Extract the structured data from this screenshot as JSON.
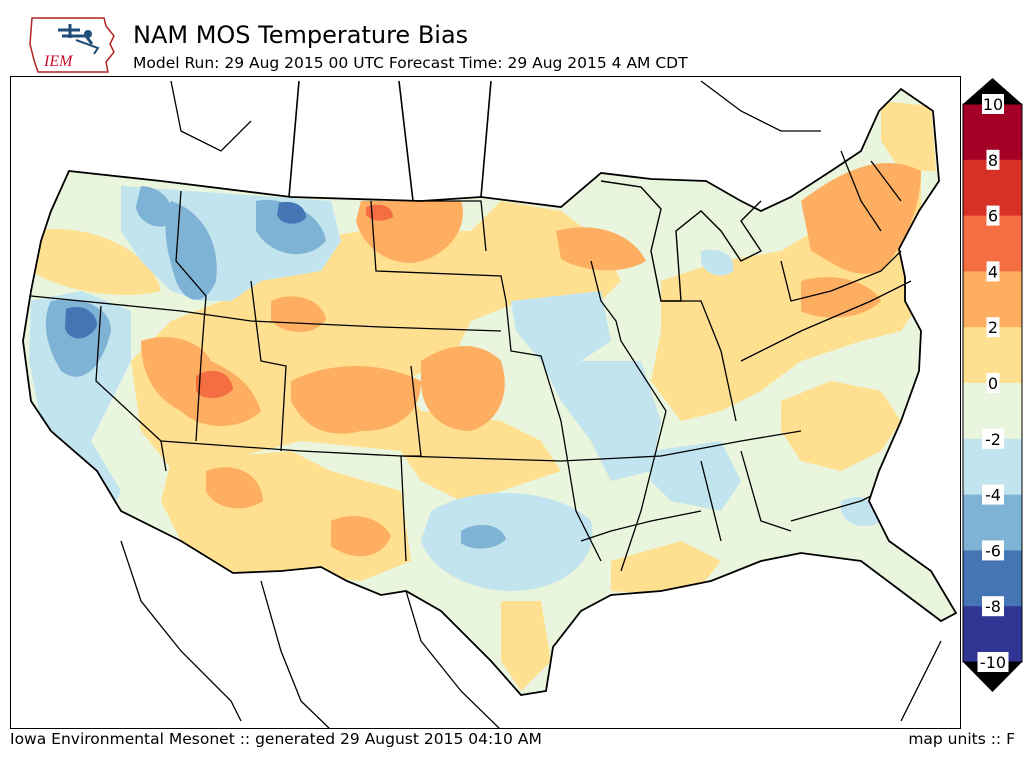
{
  "header": {
    "title": "NAM MOS Temperature Bias",
    "subtitle": "Model Run: 29 Aug 2015 00 UTC Forecast Time: 29 Aug 2015 4 AM CDT",
    "logo_text": "IEM"
  },
  "footer": {
    "credit": "Iowa Environmental Mesonet :: generated 29 August 2015 04:10 AM",
    "units": "map units :: F"
  },
  "colorbar": {
    "ticks": [
      "10",
      "8",
      "6",
      "4",
      "2",
      "0",
      "-2",
      "-4",
      "-6",
      "-8",
      "-10"
    ],
    "bins": [
      {
        "range": "8 to 10",
        "color": "#a50026"
      },
      {
        "range": "6 to 8",
        "color": "#d73027"
      },
      {
        "range": "4 to 6",
        "color": "#f46d43"
      },
      {
        "range": "2 to 4",
        "color": "#fdae61"
      },
      {
        "range": "0 to 2",
        "color": "#fee090"
      },
      {
        "range": "-2 to 0",
        "color": "#e9f5dc"
      },
      {
        "range": "-4 to -2",
        "color": "#c2e4ef"
      },
      {
        "range": "-6 to -4",
        "color": "#7fb3d5"
      },
      {
        "range": "-8 to -6",
        "color": "#4575b4"
      },
      {
        "range": "-10 to -8",
        "color": "#313695"
      }
    ]
  },
  "map": {
    "region": "Continental United States",
    "variable": "NAM MOS temperature bias (F)"
  }
}
